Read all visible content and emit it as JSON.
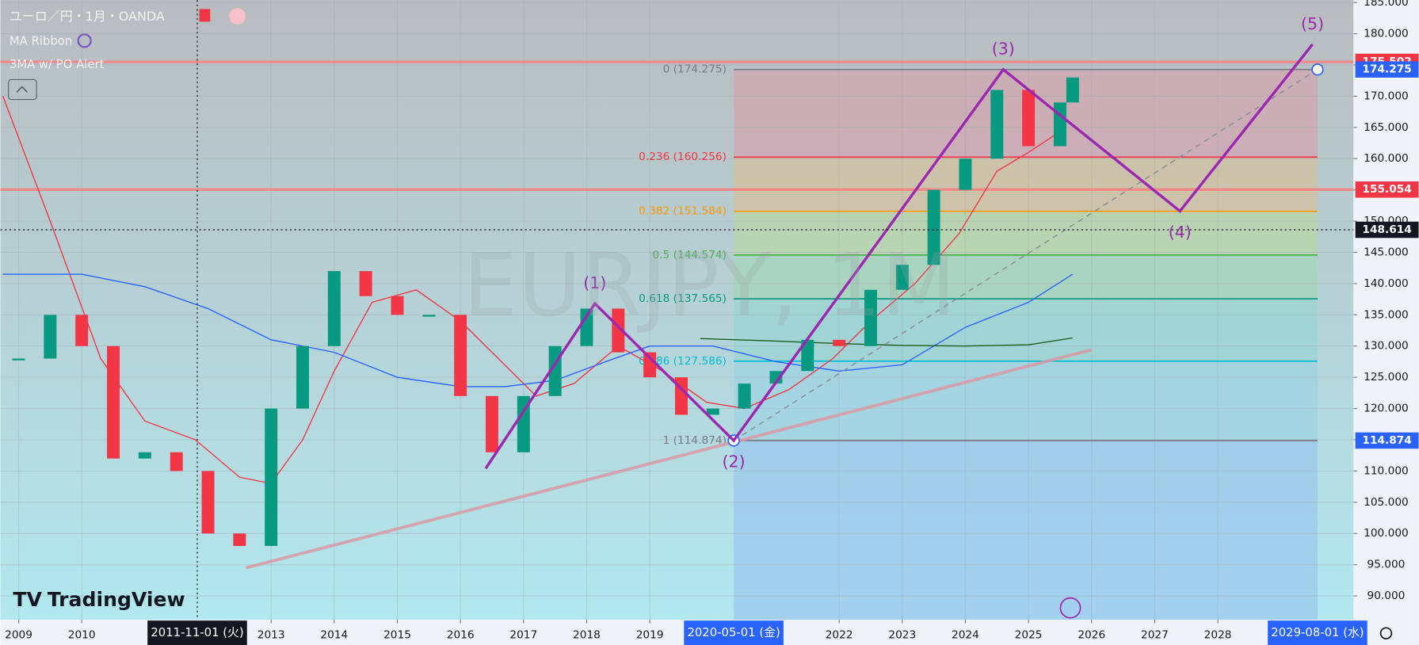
{
  "header": {
    "symbol": "ユーロ／円・1月・OANDA",
    "indicators": [
      "MA Ribbon",
      "3MA w/ PO Alert"
    ]
  },
  "watermark": "EURJPY, 1M",
  "logo": "TradingView",
  "chart_data": {
    "type": "candlestick",
    "x": [
      2009.0,
      2009.5,
      2010.0,
      2010.5,
      2011.0,
      2011.5,
      2012.0,
      2012.5,
      2013.0,
      2013.5,
      2014.0,
      2014.5,
      2015.0,
      2015.5,
      2016.0,
      2016.5,
      2017.0,
      2017.5,
      2018.0,
      2018.5,
      2019.0,
      2019.5,
      2020.0,
      2020.5,
      2021.0,
      2021.5,
      2022.0,
      2022.5,
      2023.0,
      2023.5,
      2024.0,
      2024.5,
      2025.0,
      2025.5,
      2025.7
    ],
    "values": [
      128,
      135,
      130,
      112,
      113,
      110,
      100,
      98,
      120,
      130,
      142,
      138,
      135,
      135,
      122,
      113,
      122,
      130,
      136,
      129,
      125,
      119,
      120,
      124,
      126,
      131,
      130,
      139,
      143,
      155,
      160,
      171,
      162,
      169,
      173
    ],
    "up_color": "#089981",
    "down_color": "#f23645",
    "xlim": [
      2008.71,
      2030.15
    ],
    "ylim": [
      86.2,
      185.4
    ],
    "xticks": [
      2009,
      2010,
      2013,
      2014,
      2015,
      2016,
      2017,
      2018,
      2019,
      2022,
      2023,
      2024,
      2025,
      2026,
      2027,
      2028
    ],
    "yticks": [
      {
        "value": 90,
        "label": "90.000"
      },
      {
        "value": 95,
        "label": "95.000"
      },
      {
        "value": 100,
        "label": "100.000"
      },
      {
        "value": 105,
        "label": "105.000"
      },
      {
        "value": 110,
        "label": "110.000"
      },
      {
        "value": 115,
        "label": "115.000"
      },
      {
        "value": 120,
        "label": "120.000"
      },
      {
        "value": 125,
        "label": "125.000"
      },
      {
        "value": 130,
        "label": "130.000"
      },
      {
        "value": 135,
        "label": "135.000"
      },
      {
        "value": 140,
        "label": "140.000"
      },
      {
        "value": 145,
        "label": "145.000"
      },
      {
        "value": 150,
        "label": "150.000"
      },
      {
        "value": 155,
        "label": "155.000"
      },
      {
        "value": 160,
        "label": "160.000"
      },
      {
        "value": 165,
        "label": "165.000"
      },
      {
        "value": 170,
        "label": "170.000"
      },
      {
        "value": 175,
        "label": "175.000"
      },
      {
        "value": 180,
        "label": "180.000"
      },
      {
        "value": 185,
        "label": "185.000"
      }
    ],
    "grid": true,
    "moving_averages": [
      {
        "color": "#f23645",
        "x": [
          2008.75,
          2009.5,
          2010.3,
          2011.0,
          2011.8,
          2012.5,
          2013.0,
          2013.5,
          2014.0,
          2014.6,
          2015.3,
          2016.0,
          2016.6,
          2017.2,
          2017.8,
          2018.5,
          2019.2,
          2019.9,
          2020.5,
          2021.2,
          2021.9,
          2022.5,
          2023.2,
          2023.9,
          2024.5,
          2025.0,
          2025.6
        ],
        "values": [
          170,
          150,
          128,
          118,
          115,
          109,
          108,
          115,
          126,
          137,
          139,
          134,
          128,
          122,
          124,
          130,
          126,
          121,
          120,
          123,
          128,
          134,
          140,
          148,
          158,
          161,
          165
        ]
      },
      {
        "color": "#2962ff",
        "x": [
          2008.75,
          2010.0,
          2011.0,
          2012.0,
          2013.0,
          2014.0,
          2015.0,
          2016.0,
          2016.7,
          2017.5,
          2018.3,
          2019.0,
          2020.0,
          2021.0,
          2022.0,
          2023.0,
          2024.0,
          2025.0,
          2025.7
        ],
        "values": [
          141.5,
          141.5,
          139.5,
          136,
          131,
          129,
          125,
          123.5,
          123.5,
          124.5,
          127.5,
          130,
          130,
          127.5,
          126,
          127,
          133,
          137,
          141.5
        ]
      },
      {
        "color": "#1b5e20",
        "x": [
          2019.8,
          2021.0,
          2022.0,
          2023.0,
          2024.0,
          2025.0,
          2025.7
        ],
        "values": [
          131.2,
          130.8,
          130.4,
          130.1,
          130,
          130.2,
          131.3
        ]
      }
    ],
    "fib": {
      "x": [
        2020.33,
        2029.58
      ],
      "levels": [
        {
          "label": "0 (174.275)",
          "value": 174.275,
          "color": "#787b86",
          "fill": "#d2a6b0"
        },
        {
          "label": "0.236 (160.256)",
          "value": 160.256,
          "color": "#f23645",
          "fill": "#d3c09e"
        },
        {
          "label": "0.382 (151.584)",
          "value": 151.584,
          "color": "#ff9800",
          "fill": "#b9d6a8"
        },
        {
          "label": "0.5 (144.574)",
          "value": 144.574,
          "color": "#4caf50",
          "fill": "#a4d6b8"
        },
        {
          "label": "0.618 (137.565)",
          "value": 137.565,
          "color": "#089981",
          "fill": "#9bd4d3"
        },
        {
          "label": "0.786 (127.586)",
          "value": 127.586,
          "color": "#00bcd4",
          "fill": "#a0d3e3"
        },
        {
          "label": "1 (114.874)",
          "value": 114.874,
          "color": "#787b86",
          "fill": "#9cc8ec"
        }
      ]
    },
    "waves": {
      "color": "#9c27b0",
      "labels": [
        null,
        "(1)",
        "(2)",
        "(3)",
        "(4)",
        "(5)"
      ],
      "x": [
        2016.4,
        2018.13,
        2020.33,
        2024.6,
        2027.4,
        2029.5
      ],
      "values": [
        110.4,
        136.8,
        114.874,
        174.275,
        151.6,
        178.3
      ]
    },
    "horizontal_lines": [
      {
        "value": 175.502,
        "color": "#f77c80"
      },
      {
        "value": 155.054,
        "color": "#f77c80"
      }
    ],
    "trendline": {
      "color": "#d79aa5",
      "x": [
        2012.6,
        2026.0
      ],
      "values": [
        94.5,
        129.4
      ]
    },
    "dashed_line": {
      "color": "#8a8e96",
      "x": [
        2020.33,
        2029.58
      ],
      "values": [
        114.874,
        174.275
      ]
    },
    "price_labels": [
      {
        "label": "175.502",
        "value": 175.502,
        "color": "#f23645"
      },
      {
        "label": "174.275",
        "value": 174.275,
        "color": "#2962ff"
      },
      {
        "label": "155.054",
        "value": 155.054,
        "color": "#f23645"
      },
      {
        "label": "114.874",
        "value": 114.874,
        "color": "#2962ff"
      }
    ],
    "crosshair": {
      "y_label": {
        "label": "148.614",
        "value": 148.614,
        "color": "#131722"
      },
      "x_labels": [
        {
          "label": "2011-11-01 (火)",
          "value": 2011.83,
          "color": "#131722"
        },
        {
          "label": "2020-05-01 (金)",
          "value": 2020.33,
          "color": "#2962ff"
        },
        {
          "label": "2029-08-01 (水)",
          "value": 2029.58,
          "color": "#2962ff"
        }
      ]
    }
  }
}
